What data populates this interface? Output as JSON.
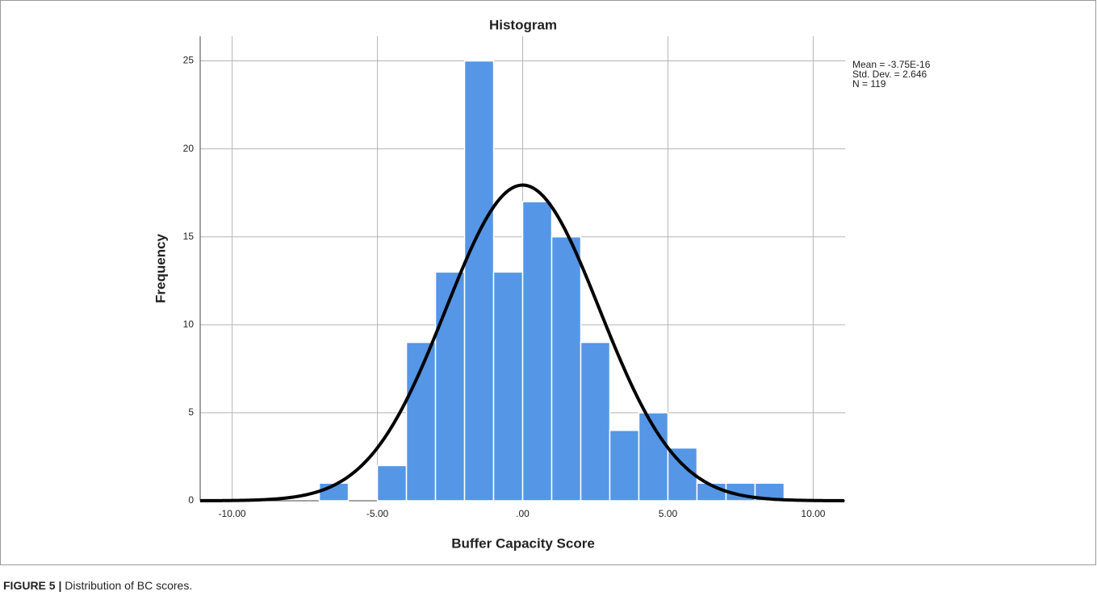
{
  "chart_data": {
    "type": "histogram",
    "title": "Histogram",
    "x_label": "Buffer Capacity Score",
    "y_label": "Frequency",
    "bins": [
      -7,
      -6,
      -5,
      -4,
      -3,
      -2,
      -1,
      0,
      1,
      2,
      3,
      4,
      5,
      6,
      7,
      8,
      9
    ],
    "values": [
      1,
      0,
      2,
      9,
      13,
      25,
      13,
      17,
      15,
      9,
      4,
      5,
      3,
      1,
      1,
      1
    ],
    "color": "#5596e6",
    "curve": {
      "mean": -3.75e-16,
      "sd": 2.646,
      "n": 119,
      "color": "#000000"
    },
    "annotations": [
      "Mean = -3.75E-16",
      "Std. Dev. = 2.646",
      "N = 119"
    ],
    "xlim": [
      -11.1,
      11.1
    ],
    "ylim": [
      0,
      26.4
    ],
    "xticks": [
      {
        "value": -10,
        "label": "-10.00"
      },
      {
        "value": -5,
        "label": "-5.00"
      },
      {
        "value": 0,
        "label": ".00"
      },
      {
        "value": 5,
        "label": "5.00"
      },
      {
        "value": 10,
        "label": "10.00"
      }
    ],
    "yticks": [
      0,
      5,
      10,
      15,
      20,
      25
    ],
    "grid": true
  },
  "caption": {
    "label": "FIGURE 5 |",
    "text": "Distribution of BC scores."
  }
}
